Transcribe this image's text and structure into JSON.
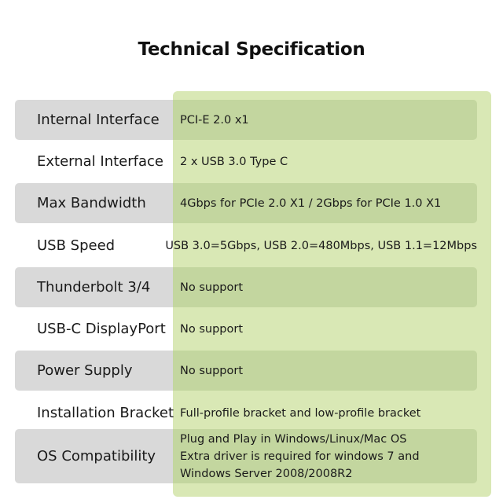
{
  "title": "Technical Specification",
  "colors": {
    "label_bg": "#d9d9d9",
    "panel_bg": "#d9e8b5",
    "value_bg": "#c3d69f"
  },
  "rows": [
    {
      "label": "Internal Interface",
      "value": "PCI-E 2.0 x1"
    },
    {
      "label": "External Interface",
      "value": "2 x USB 3.0 Type C"
    },
    {
      "label": "Max Bandwidth",
      "value": "4Gbps for PCIe 2.0 X1 / 2Gbps for PCIe 1.0 X1"
    },
    {
      "label": "USB Speed",
      "value": "USB 3.0=5Gbps, USB 2.0=480Mbps, USB 1.1=12Mbps"
    },
    {
      "label": "Thunderbolt 3/4",
      "value": "No support"
    },
    {
      "label": "USB-C DisplayPort",
      "value": "No support"
    },
    {
      "label": "Power Supply",
      "value": "No support"
    },
    {
      "label": "Installation Bracket",
      "value": "Full-profile bracket and low-profile bracket"
    },
    {
      "label": "OS Compatibility",
      "value_lines": [
        "Plug and Play in Windows/Linux/Mac OS",
        "Extra driver is required for windows 7 and",
        "Windows Server 2008/2008R2"
      ]
    }
  ]
}
